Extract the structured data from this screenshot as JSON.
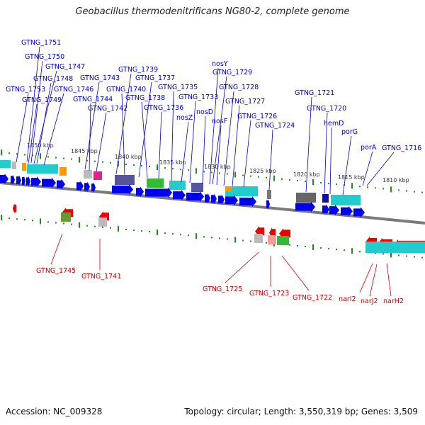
{
  "title": "Geobacillus thermodenitrificans NG80-2, complete genome",
  "footer": {
    "accession": "Accession: NC_009328",
    "summary": "Topology: circular; Length: 3,550,319 bp; Genes: 3,509"
  },
  "colors": {
    "forward_strand": "#0000ee",
    "reverse_strand": "#ee0000",
    "backbone": "#777777",
    "tick": "#228b22",
    "label_forward": "#0000cc",
    "label_reverse": "#cc0000"
  },
  "scale_labels": [
    "1850 kbp",
    "1845 kbp",
    "1840 kbp",
    "1835 kbp",
    "1830 kbp",
    "1825 kbp",
    "1820 kbp",
    "1815 kbp",
    "1810 kbp"
  ],
  "labels_top": [
    "GTNG_1751",
    "GTNG_1750",
    "GTNG_1747",
    "GTNG_1748",
    "GTNG_1753",
    "GTNG_1746",
    "GTNG_1749",
    "GTNG_1743",
    "GTNG_1744",
    "GTNG_1742",
    "GTNG_1739",
    "GTNG_1737",
    "GTNG_1740",
    "GTNG_1738",
    "GTNG_1736",
    "GTNG_1735",
    "GTNG_1733",
    "nosZ",
    "nosY",
    "GTNG_1729",
    "GTNG_1728",
    "nosD",
    "nosF",
    "GTNG_1727",
    "GTNG_1726",
    "GTNG_1724",
    "GTNG_1721",
    "GTNG_1720",
    "hemD",
    "porG",
    "porA",
    "GTNG_1716"
  ],
  "labels_bottom": [
    "GTNG_1745",
    "GTNG_1741",
    "GTNG_1725",
    "GTNG_1723",
    "GTNG_1722",
    "narI2",
    "narJ2",
    "narH2"
  ]
}
